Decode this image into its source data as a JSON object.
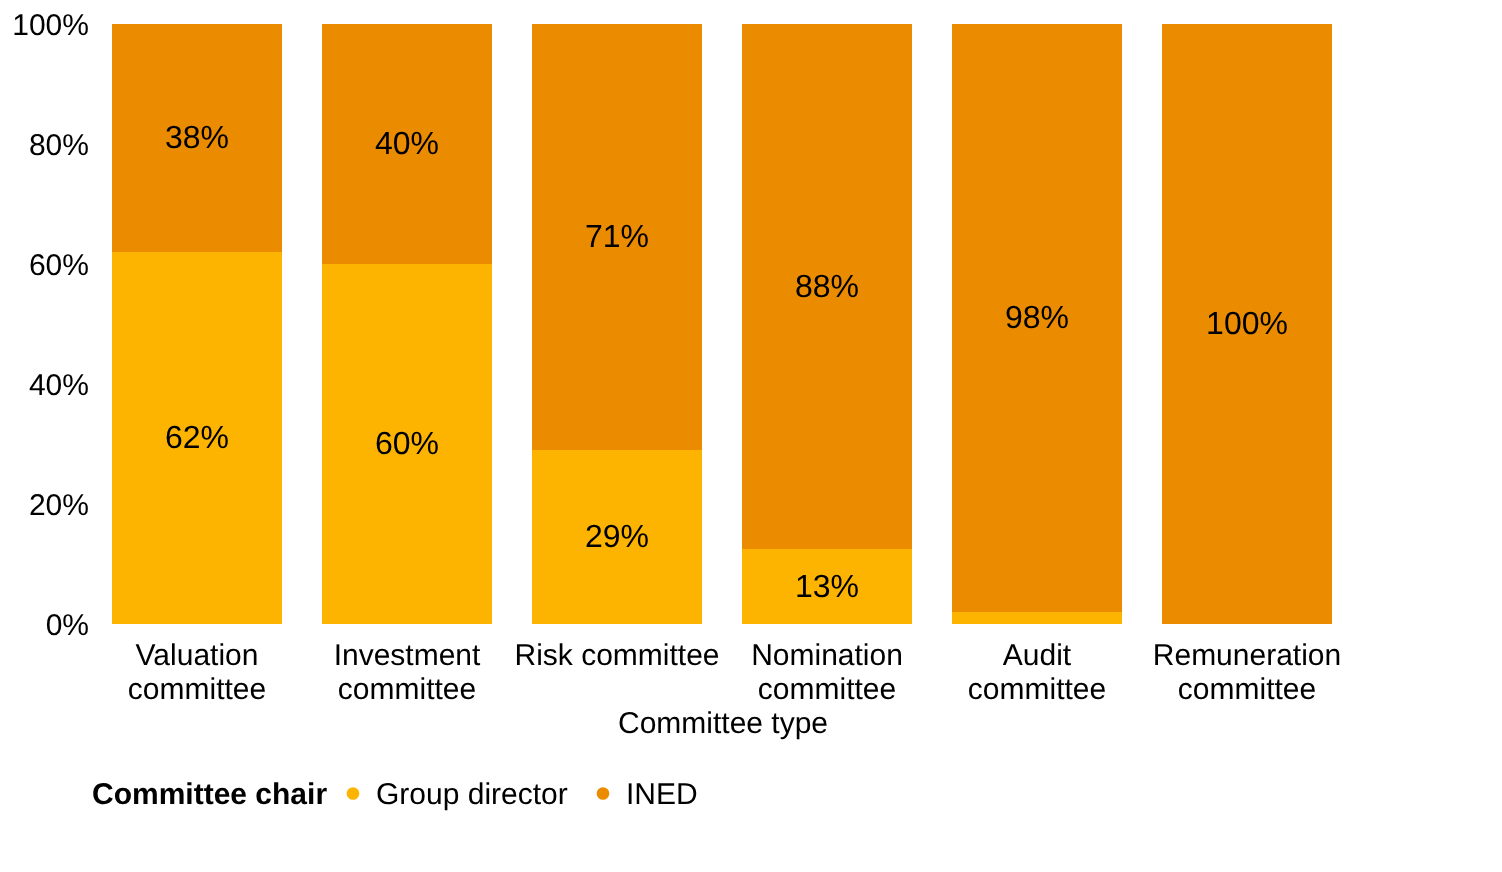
{
  "chart_data": {
    "type": "bar",
    "stacked": true,
    "xlabel": "Committee type",
    "legend_title": "Committee chair",
    "legend": "bottom",
    "grid": false,
    "categories": [
      "Valuation committee",
      "Investment committee",
      "Risk committee",
      "Nomination committee",
      "Audit committee",
      "Remuneration committee"
    ],
    "ylim": [
      0,
      100
    ],
    "yticks": [
      {
        "value": 0,
        "label": "0%"
      },
      {
        "value": 20,
        "label": "20%"
      },
      {
        "value": 40,
        "label": "40%"
      },
      {
        "value": 60,
        "label": "60%"
      },
      {
        "value": 80,
        "label": "80%"
      },
      {
        "value": 100,
        "label": "100%"
      }
    ],
    "series": [
      {
        "name": "Group director",
        "color": "#fdb400",
        "values": [
          62,
          60,
          29,
          12.5,
          2,
          0
        ],
        "value_labels": [
          "62%",
          "60%",
          "29%",
          "13%",
          null,
          null
        ]
      },
      {
        "name": "INED",
        "color": "#eb8c00",
        "values": [
          38,
          40,
          71,
          87.5,
          98,
          100
        ],
        "value_labels": [
          "38%",
          "40%",
          "71%",
          "88%",
          "98%",
          "100%"
        ]
      }
    ]
  }
}
